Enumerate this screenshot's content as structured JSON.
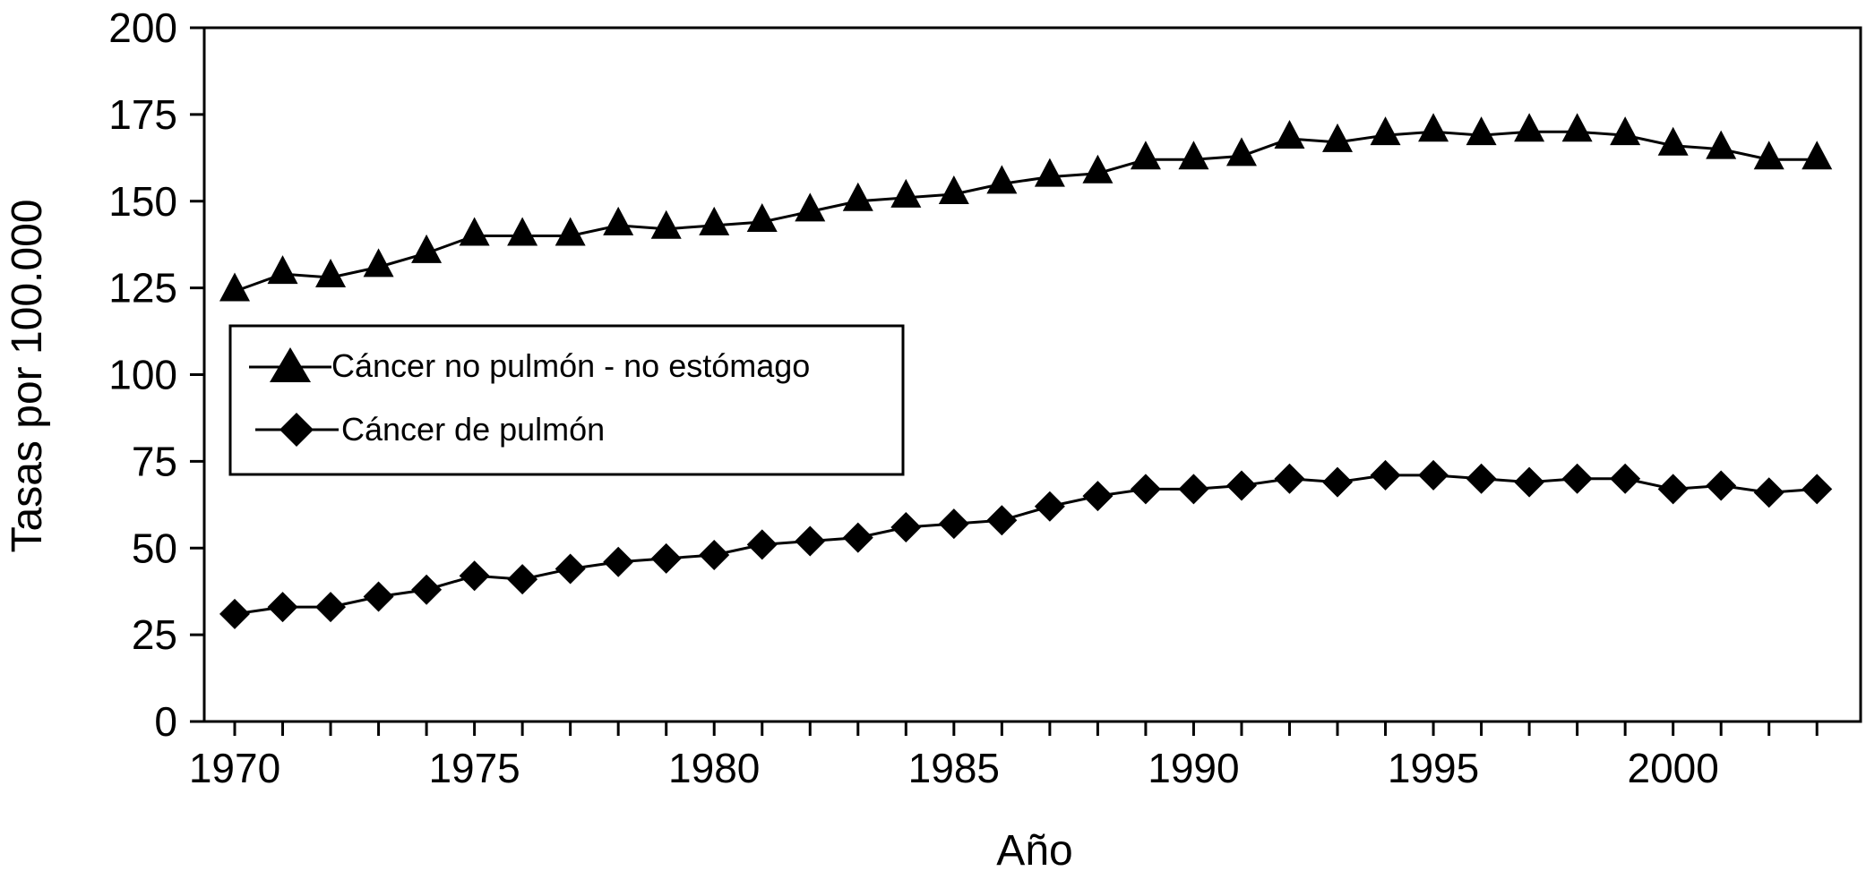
{
  "chart_data": {
    "type": "line",
    "title": "",
    "xlabel": "Año",
    "ylabel": "Tasas por 100.000",
    "xlim": [
      1970,
      2003.5
    ],
    "ylim": [
      0,
      200
    ],
    "x_ticks": [
      "1970",
      "1975",
      "1980",
      "1985",
      "1990",
      "1995",
      "2000"
    ],
    "y_ticks": [
      "0",
      "25",
      "50",
      "75",
      "100",
      "125",
      "150",
      "175",
      "200"
    ],
    "grid": false,
    "legend_position": "left-middle",
    "x": [
      1970,
      1971,
      1972,
      1973,
      1974,
      1975,
      1976,
      1977,
      1978,
      1979,
      1980,
      1981,
      1982,
      1983,
      1984,
      1985,
      1986,
      1987,
      1988,
      1989,
      1990,
      1991,
      1992,
      1993,
      1994,
      1995,
      1996,
      1997,
      1998,
      1999,
      2000,
      2001,
      2002,
      2003
    ],
    "series": [
      {
        "name": "Cáncer no pulmón - no estómago",
        "marker": "triangle",
        "values": [
          124,
          129,
          128,
          131,
          135,
          140,
          140,
          140,
          143,
          142,
          143,
          144,
          147,
          150,
          151,
          152,
          155,
          157,
          158,
          162,
          162,
          163,
          168,
          167,
          169,
          170,
          169,
          170,
          170,
          169,
          166,
          165,
          162,
          162
        ]
      },
      {
        "name": "Cáncer de pulmón",
        "marker": "diamond",
        "values": [
          31,
          33,
          33,
          36,
          38,
          42,
          41,
          44,
          46,
          47,
          48,
          51,
          52,
          53,
          56,
          57,
          58,
          62,
          65,
          67,
          67,
          68,
          70,
          69,
          71,
          71,
          70,
          69,
          70,
          70,
          67,
          68,
          66,
          67
        ]
      }
    ],
    "colors": {
      "line": "#000000",
      "marker": "#000000",
      "background": "#ffffff"
    }
  }
}
